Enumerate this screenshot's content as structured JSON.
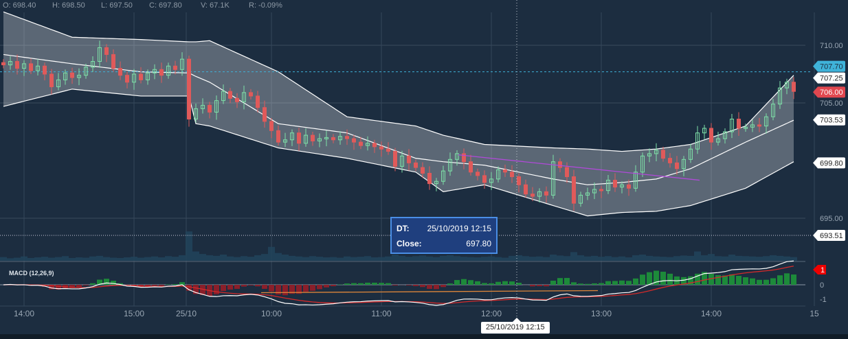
{
  "stats": {
    "open": "O: 698.40",
    "high": "H: 698.50",
    "low": "L: 697.50",
    "close": "C: 697.80",
    "volume": "V: 67.1K",
    "change": "R: -0.09%"
  },
  "tooltip": {
    "dt_label": "DT:",
    "dt_value": "25/10/2019 12:15",
    "close_label": "Close:",
    "close_value": "697.80"
  },
  "crosshair_time": "25/10/2019 12:15",
  "colors": {
    "bg": "#1c2d40",
    "up": "#7ee0a8",
    "down": "#e05a5a",
    "band": "#ffffff",
    "macd": "#ffffff",
    "signal": "#d42a2a",
    "accent": "#3fb3d9",
    "trend": "#b04ad8",
    "orange": "#e0873a"
  },
  "chart_data": {
    "type": "candlestick",
    "ylim": [
      693.0,
      713.5
    ],
    "yticks": [
      "710.00",
      "705.00",
      "695.00"
    ],
    "ytick_values": [
      710,
      705,
      695
    ],
    "price_labels": [
      {
        "text": "707.70",
        "value": 707.7,
        "style": "cyan"
      },
      {
        "text": "707.25",
        "value": 707.25,
        "style": "white"
      },
      {
        "text": "706.00",
        "value": 706.0,
        "style": "red"
      },
      {
        "text": "703.53",
        "value": 703.53,
        "style": "white"
      },
      {
        "text": "699.80",
        "value": 699.8,
        "style": "white"
      },
      {
        "text": "693.51",
        "value": 693.51,
        "style": "white"
      }
    ],
    "xticks": [
      {
        "label": "14:00",
        "index": 3
      },
      {
        "label": "15:00",
        "index": 19
      },
      {
        "label": "25/10",
        "index": 26.6
      },
      {
        "label": "10:00",
        "index": 39
      },
      {
        "label": "11:00",
        "index": 55
      },
      {
        "label": "12:00",
        "index": 71
      },
      {
        "label": "13:00",
        "index": 87
      },
      {
        "label": "14:00",
        "index": 103
      },
      {
        "label": "15",
        "index": 118
      }
    ],
    "closes": [
      708.3,
      708.6,
      708.0,
      708.4,
      707.8,
      708.2,
      707.5,
      706.4,
      707.0,
      707.6,
      707.2,
      707.4,
      708.1,
      708.6,
      709.8,
      709.2,
      708.0,
      707.4,
      706.8,
      707.5,
      707.0,
      707.6,
      707.9,
      707.4,
      708.2,
      707.9,
      708.8,
      703.6,
      704.5,
      704.8,
      704.2,
      705.2,
      706.0,
      705.4,
      705.1,
      705.9,
      705.6,
      704.6,
      703.4,
      702.6,
      701.6,
      701.8,
      702.4,
      701.5,
      702.2,
      701.7,
      701.9,
      702.0,
      701.8,
      702.1,
      701.9,
      701.6,
      701.3,
      701.5,
      701.2,
      701.0,
      700.8,
      699.5,
      700.4,
      699.8,
      699.4,
      698.9,
      698.0,
      698.2,
      699.1,
      700.1,
      700.6,
      699.9,
      699.0,
      698.7,
      698.1,
      698.4,
      699.2,
      699.0,
      698.6,
      697.9,
      697.1,
      696.9,
      697.3,
      697.0,
      699.9,
      699.4,
      698.6,
      696.3,
      697.0,
      697.2,
      697.5,
      697.4,
      698.3,
      697.7,
      697.9,
      697.6,
      699.0,
      700.4,
      700.6,
      700.9,
      700.2,
      699.8,
      699.3,
      700.1,
      701.0,
      702.4,
      702.8,
      701.6,
      701.9,
      702.5,
      703.6,
      702.8,
      702.9,
      703.1,
      703.0,
      703.8,
      704.9,
      706.3,
      706.8,
      706.0
    ],
    "volumes": [
      12,
      8,
      10,
      14,
      9,
      11,
      13,
      10,
      12,
      15,
      9,
      11,
      10,
      14,
      16,
      12,
      10,
      9,
      11,
      13,
      10,
      12,
      14,
      11,
      15,
      13,
      18,
      95,
      30,
      22,
      18,
      16,
      20,
      14,
      12,
      15,
      13,
      18,
      22,
      45,
      25,
      20,
      16,
      14,
      12,
      15,
      13,
      11,
      12,
      10,
      14,
      12,
      13,
      15,
      11,
      12,
      14,
      20,
      16,
      13,
      15,
      17,
      14,
      12,
      16,
      18,
      15,
      13,
      12,
      11,
      13,
      14,
      12,
      10,
      16,
      18,
      15,
      13,
      14,
      12,
      20,
      17,
      15,
      28,
      18,
      14,
      16,
      13,
      15,
      12,
      14,
      11,
      18,
      20,
      16,
      14,
      13,
      12,
      15,
      17,
      16,
      30,
      18,
      22,
      15,
      14,
      20,
      16,
      15,
      14,
      13,
      15,
      18,
      16,
      14,
      12
    ],
    "bollinger": {
      "index": [
        0,
        10,
        20,
        27,
        28,
        30,
        40,
        50,
        60,
        64,
        70,
        80,
        85,
        90,
        95,
        100,
        108,
        115
      ],
      "upper": [
        712.9,
        710.7,
        710.5,
        710.3,
        710.3,
        710.4,
        707.7,
        703.8,
        703.0,
        702.2,
        701.4,
        701.1,
        701.0,
        700.8,
        701.0,
        701.4,
        703.0,
        707.4
      ],
      "middle": [
        709.2,
        708.4,
        707.7,
        707.6,
        707.3,
        706.8,
        703.2,
        702.4,
        700.2,
        699.9,
        699.6,
        698.4,
        697.9,
        698.1,
        698.4,
        699.3,
        701.6,
        703.5
      ],
      "lower": [
        704.7,
        706.2,
        705.6,
        705.6,
        703.2,
        703.0,
        701.1,
        700.2,
        699.0,
        697.3,
        697.9,
        696.1,
        695.2,
        695.5,
        695.6,
        696.1,
        697.6,
        699.9
      ]
    },
    "trendline": {
      "from": {
        "index": 66.2,
        "price": 700.5
      },
      "to": {
        "index": 101.3,
        "price": 698.3
      }
    },
    "ref_lines": [
      {
        "price": 707.7,
        "style": "cyan-dashed"
      },
      {
        "price": 693.51,
        "style": "white-dotted"
      }
    ],
    "crosshair_index": 74.7,
    "macd": {
      "title": "MACD (12,26,9)",
      "fast": 12,
      "slow": 26,
      "signal": 9,
      "ylim": [
        -1.3,
        1.6
      ],
      "yticks": [
        "0",
        "-1"
      ],
      "last_label": "1",
      "orange_line": {
        "from_index": 37.5,
        "to_index": 86.5,
        "value": -0.5
      }
    }
  }
}
